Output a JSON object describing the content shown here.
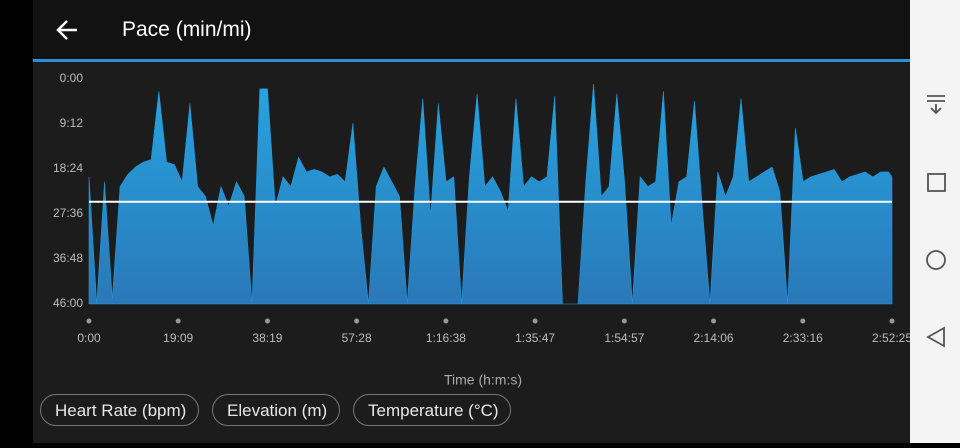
{
  "chart_data": {
    "type": "area",
    "title": "Pace (min/mi)",
    "x_label": "Time (h:m:s)",
    "color": "#2196d8",
    "reference_line": 25.1,
    "reference_color": "#ffffff",
    "y_inverted": true,
    "grid": false,
    "xlim": [
      0,
      10345
    ],
    "xticks": [
      {
        "value": 0,
        "label": "0:00"
      },
      {
        "value": 1149,
        "label": "19:09"
      },
      {
        "value": 2299,
        "label": "38:19"
      },
      {
        "value": 3448,
        "label": "57:28"
      },
      {
        "value": 4598,
        "label": "1:16:38"
      },
      {
        "value": 5747,
        "label": "1:35:47"
      },
      {
        "value": 6897,
        "label": "1:54:57"
      },
      {
        "value": 8046,
        "label": "2:14:06"
      },
      {
        "value": 9196,
        "label": "2:33:16"
      },
      {
        "value": 10345,
        "label": "2:52:25"
      }
    ],
    "ylim": [
      0,
      46
    ],
    "yticks": [
      {
        "value": 0,
        "label": "0:00"
      },
      {
        "value": 9.2,
        "label": "9:12"
      },
      {
        "value": 18.4,
        "label": "18:24"
      },
      {
        "value": 27.6,
        "label": "27:36"
      },
      {
        "value": 36.8,
        "label": "36:48"
      },
      {
        "value": 46,
        "label": "46:00"
      }
    ],
    "x": [
      0,
      100,
      200,
      300,
      400,
      500,
      600,
      700,
      800,
      900,
      1000,
      1100,
      1200,
      1300,
      1400,
      1500,
      1600,
      1700,
      1800,
      1900,
      2000,
      2100,
      2200,
      2300,
      2400,
      2500,
      2600,
      2700,
      2800,
      2900,
      3000,
      3100,
      3200,
      3300,
      3400,
      3500,
      3600,
      3700,
      3800,
      3900,
      4000,
      4100,
      4200,
      4300,
      4400,
      4500,
      4600,
      4700,
      4800,
      4900,
      5000,
      5100,
      5200,
      5300,
      5400,
      5500,
      5600,
      5700,
      5800,
      5900,
      6000,
      6100,
      6200,
      6300,
      6400,
      6500,
      6600,
      6700,
      6800,
      6900,
      7000,
      7100,
      7200,
      7300,
      7400,
      7500,
      7600,
      7700,
      7800,
      7900,
      8000,
      8100,
      8200,
      8300,
      8400,
      8500,
      8600,
      8700,
      8800,
      8900,
      9000,
      9100,
      9200,
      9300,
      9400,
      9500,
      9600,
      9700,
      9800,
      9900,
      10000,
      10100,
      10200,
      10300,
      10345
    ],
    "values": [
      20,
      46,
      21,
      45,
      22,
      19.5,
      18,
      17,
      16.5,
      2.5,
      17,
      17.5,
      21,
      5,
      22,
      24,
      30,
      22,
      26,
      21,
      24,
      46,
      2,
      2,
      26,
      20,
      22,
      16,
      19,
      18.5,
      19,
      20,
      19.5,
      21,
      9,
      30,
      46,
      22,
      18,
      21,
      24,
      46,
      22,
      4,
      28,
      5,
      21,
      20,
      46,
      20,
      3,
      22,
      20,
      23,
      27,
      4,
      22,
      20,
      21,
      20,
      3.5,
      46,
      46,
      46,
      21,
      1,
      24,
      22,
      3,
      21,
      46,
      20,
      22,
      21,
      2.5,
      30,
      21,
      20,
      4.5,
      26,
      46,
      19,
      24,
      20,
      4,
      21,
      20,
      19,
      18,
      23,
      46,
      10,
      21,
      20,
      19.5,
      19,
      18.5,
      21,
      20,
      19.5,
      19,
      20,
      19,
      19,
      20
    ]
  },
  "buttons": [
    "Heart Rate (bpm)",
    "Elevation (m)",
    "Temperature (°C)"
  ]
}
